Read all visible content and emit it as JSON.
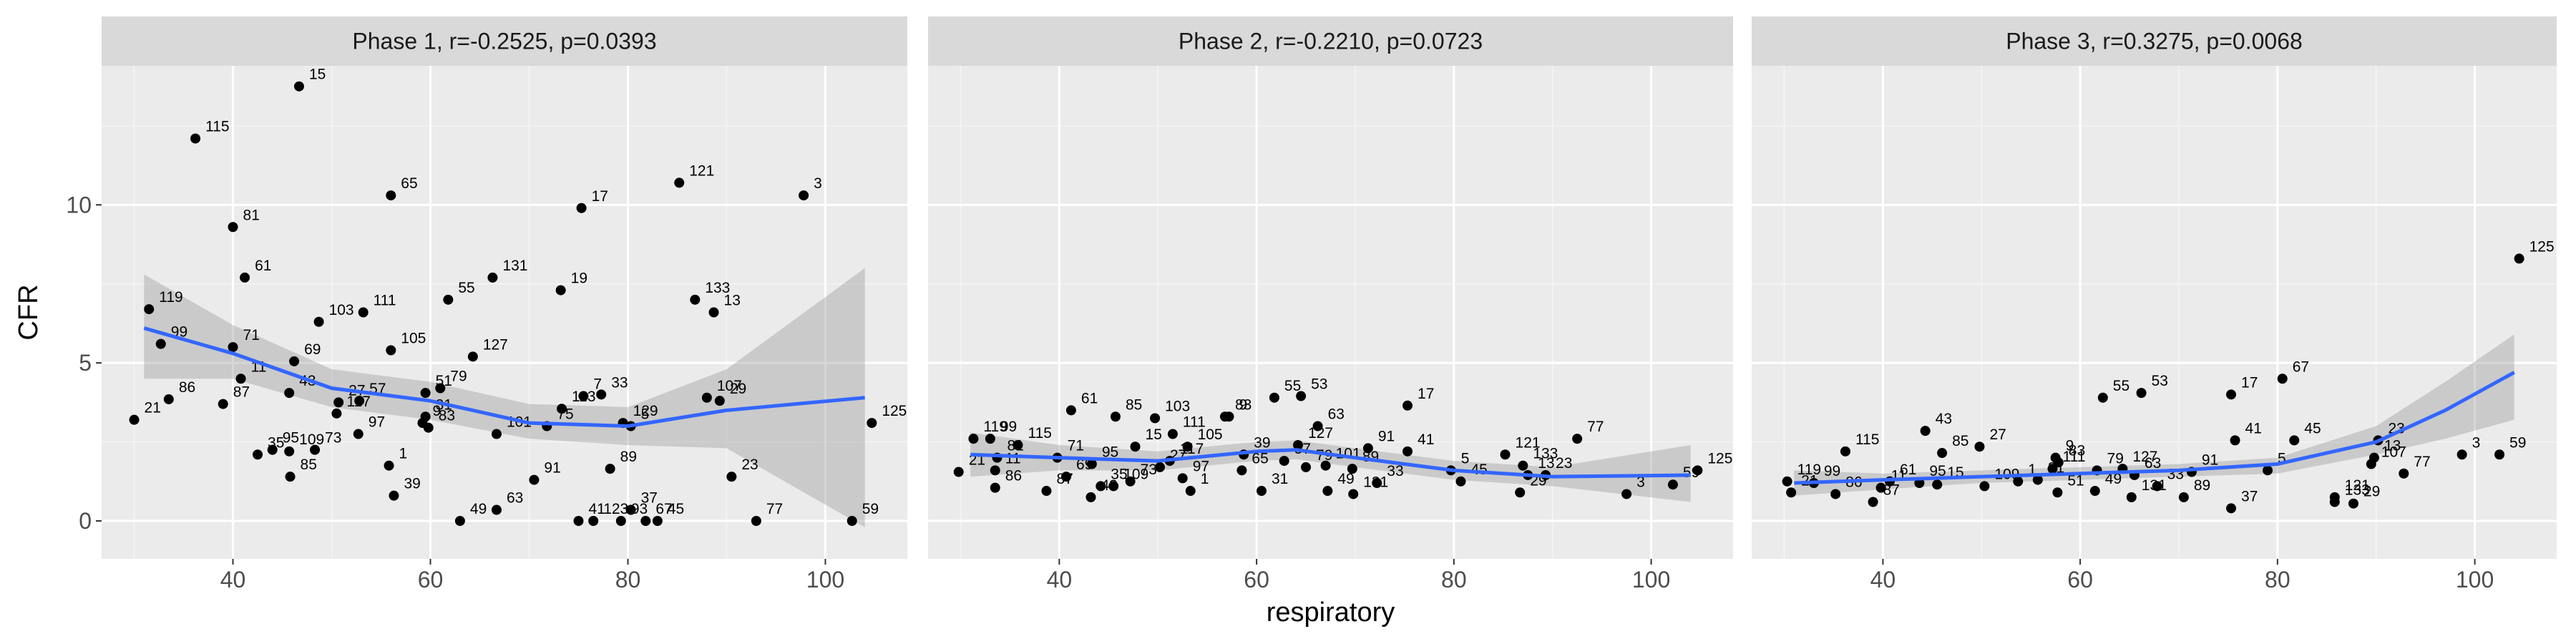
{
  "chart_data": [
    {
      "type": "scatter",
      "title": "Phase 1, r=-0.2525, p=0.0393",
      "ylabel": "CFR",
      "xlim": [
        26.7,
        108.3
      ],
      "ylim": [
        -1.2,
        14.4
      ],
      "xticks": [
        40,
        60,
        80,
        100
      ],
      "yticks": [
        0,
        5,
        10
      ],
      "grid": true,
      "color": "#000000",
      "point_labels": [
        "15",
        "115",
        "65",
        "81",
        "17",
        "121",
        "3",
        "131",
        "19",
        "133",
        "13",
        "61",
        "111",
        "55",
        "119",
        "71",
        "69",
        "103",
        "105",
        "127",
        "99",
        "11",
        "51",
        "79",
        "33",
        "7",
        "107",
        "86",
        "43",
        "27",
        "57",
        "117",
        "9",
        "31",
        "97",
        "113",
        "5",
        "21",
        "87",
        "95",
        "109",
        "83",
        "101",
        "75",
        "129",
        "29",
        "91",
        "89",
        "35",
        "85",
        "73",
        "1",
        "39",
        "23",
        "63",
        "49",
        "41",
        "123",
        "37",
        "45",
        "93",
        "67",
        "77",
        "59",
        "125"
      ],
      "x": [
        46.7,
        36.2,
        56,
        40,
        75.3,
        85.2,
        97.8,
        66.3,
        73.2,
        86.8,
        88.7,
        41.2,
        53.2,
        61.8,
        31.5,
        40,
        46.2,
        48.7,
        56,
        64.3,
        32.7,
        40.8,
        59.5,
        61,
        77.3,
        75.5,
        88,
        33.5,
        45.7,
        50.7,
        52.8,
        50.5,
        59.2,
        59.5,
        52.7,
        73.3,
        80.3,
        30,
        39,
        44,
        45.7,
        59.8,
        66.7,
        71.8,
        79.5,
        89.3,
        70.5,
        78.2,
        42.5,
        45.8,
        48.3,
        55.8,
        56.3,
        90.5,
        66.7,
        63,
        75,
        76.5,
        80.3,
        83,
        79.3,
        81.8,
        93,
        102.7,
        104.7
      ],
      "values": [
        13.75,
        12.1,
        10.3,
        9.3,
        9.9,
        10.7,
        10.3,
        7.7,
        7.3,
        7.0,
        6.6,
        7.7,
        6.6,
        7.0,
        6.7,
        5.5,
        5.05,
        6.3,
        5.4,
        5.2,
        5.6,
        4.5,
        4.05,
        4.2,
        4.0,
        3.95,
        3.9,
        3.85,
        4.05,
        3.75,
        3.8,
        3.4,
        3.1,
        3.3,
        2.75,
        3.55,
        3.0,
        3.2,
        3.7,
        2.25,
        2.2,
        2.95,
        2.75,
        3.0,
        3.1,
        3.8,
        1.3,
        1.65,
        2.1,
        1.4,
        2.25,
        1.75,
        0.8,
        1.4,
        0.35,
        0,
        0,
        0,
        0.35,
        0,
        0,
        0,
        0,
        0,
        3.1
      ],
      "smooth": {
        "color": "#3366ff",
        "band_color": "#999999",
        "x": [
          31,
          40,
          50,
          60,
          70,
          80,
          90,
          104
        ],
        "values": [
          6.1,
          5.3,
          4.2,
          3.8,
          3.1,
          3.0,
          3.5,
          3.9
        ],
        "lower": [
          4.5,
          4.5,
          3.6,
          3.2,
          2.6,
          2.4,
          2.3,
          -0.2
        ],
        "upper": [
          7.8,
          6.2,
          4.8,
          4.4,
          3.7,
          3.6,
          4.8,
          8.0
        ]
      }
    },
    {
      "type": "scatter",
      "title": "Phase 2, r=-0.2210, p=0.0723",
      "xlabel": "respiratory",
      "xlim": [
        26.7,
        108.3
      ],
      "ylim": [
        -1.2,
        14.4
      ],
      "xticks": [
        40,
        60,
        80,
        100
      ],
      "yticks": [
        0,
        5,
        10
      ],
      "grid": true,
      "color": "#000000",
      "point_labels": [
        "9",
        "55",
        "53",
        "103",
        "61",
        "85",
        "111",
        "83",
        "63",
        "17",
        "121",
        "133",
        "77",
        "125",
        "119",
        "115",
        "99",
        "71",
        "69",
        "15",
        "105",
        "127",
        "91",
        "41",
        "101",
        "5",
        "21",
        "81",
        "95",
        "117",
        "39",
        "57",
        "79",
        "23",
        "45",
        "11",
        "27",
        "86",
        "87",
        "35",
        "109",
        "73",
        "97",
        "1",
        "65",
        "31",
        "49",
        "131",
        "89",
        "33",
        "13",
        "29",
        "3",
        "59",
        "43"
      ],
      "x": [
        57.2,
        61.8,
        64.5,
        49.7,
        41.2,
        45.7,
        51.5,
        56.8,
        66.2,
        75.3,
        85.2,
        87,
        92.5,
        104.7,
        31.3,
        35.8,
        33,
        39.8,
        40.7,
        47.7,
        53,
        64.2,
        71.3,
        75.3,
        67,
        79.7,
        29.8,
        33.7,
        43.3,
        51.2,
        58.7,
        62.8,
        65,
        89.3,
        80.7,
        33.5,
        50.2,
        33.5,
        38.7,
        44.2,
        45.5,
        47.2,
        52.5,
        53.3,
        58.5,
        60.5,
        67.2,
        69.8,
        69.7,
        72.2,
        87.5,
        86.7,
        97.5,
        102.2,
        43.2
      ],
      "values": [
        3.3,
        3.9,
        3.95,
        3.25,
        3.5,
        3.3,
        2.75,
        3.3,
        3.0,
        3.65,
        2.1,
        1.75,
        2.6,
        1.6,
        2.6,
        2.4,
        2.6,
        2.0,
        1.4,
        2.35,
        2.35,
        2.4,
        2.3,
        2.2,
        1.75,
        1.6,
        1.55,
        2.0,
        1.8,
        1.9,
        2.1,
        1.9,
        1.7,
        1.45,
        1.25,
        1.6,
        1.7,
        1.05,
        0.95,
        1.1,
        1.1,
        1.25,
        1.35,
        0.95,
        1.6,
        0.95,
        0.95,
        0.85,
        1.65,
        1.2,
        1.45,
        0.9,
        0.85,
        1.15,
        0.75
      ],
      "smooth": {
        "color": "#3366ff",
        "band_color": "#999999",
        "x": [
          31,
          40,
          50,
          60,
          64,
          70,
          80,
          90,
          104
        ],
        "values": [
          2.1,
          2.0,
          1.9,
          2.2,
          2.25,
          2.0,
          1.6,
          1.4,
          1.45
        ],
        "lower": [
          1.4,
          1.6,
          1.6,
          1.9,
          1.95,
          1.7,
          1.3,
          1.1,
          0.6
        ],
        "upper": [
          2.8,
          2.4,
          2.2,
          2.5,
          2.55,
          2.3,
          1.9,
          1.7,
          2.4
        ]
      }
    },
    {
      "type": "scatter",
      "title": "Phase 3, r=0.3275, p=0.0068",
      "xlim": [
        26.7,
        108.3
      ],
      "ylim": [
        -1.2,
        14.4
      ],
      "xticks": [
        40,
        60,
        80,
        100
      ],
      "yticks": [
        0,
        5,
        10
      ],
      "grid": true,
      "color": "#000000",
      "point_labels": [
        "125",
        "67",
        "17",
        "53",
        "55",
        "43",
        "85",
        "27",
        "115",
        "9",
        "111",
        "83",
        "127",
        "79",
        "63",
        "41",
        "45",
        "13",
        "23",
        "107",
        "91",
        "5",
        "119",
        "99",
        "61",
        "15",
        "31",
        "21",
        "86",
        "87",
        "11",
        "95",
        "109",
        "1",
        "51",
        "49",
        "131",
        "33",
        "89",
        "37",
        "121",
        "133",
        "29",
        "77",
        "3",
        "59"
      ],
      "x": [
        104.5,
        80.5,
        75.3,
        66.2,
        62.3,
        44.3,
        46,
        49.8,
        36.2,
        57.5,
        57.2,
        57.8,
        64.3,
        61.7,
        65.5,
        75.7,
        81.7,
        89.8,
        90.2,
        89.5,
        71.3,
        79,
        30.3,
        33,
        40.7,
        45.5,
        55.7,
        30.7,
        35.2,
        39,
        39.8,
        43.7,
        50.3,
        53.7,
        57.7,
        61.5,
        65.2,
        67.8,
        70.5,
        75.3,
        85.8,
        85.8,
        87.7,
        92.8,
        98.7,
        102.5
      ],
      "values": [
        8.3,
        4.5,
        4.0,
        4.05,
        3.9,
        2.85,
        2.15,
        2.35,
        2.2,
        2.0,
        1.65,
        1.85,
        1.65,
        1.6,
        1.45,
        2.55,
        2.55,
        2.0,
        2.55,
        1.8,
        1.55,
        1.6,
        1.25,
        1.2,
        1.25,
        1.15,
        1.3,
        0.9,
        0.85,
        0.6,
        1.05,
        1.2,
        1.1,
        1.25,
        0.9,
        0.95,
        0.75,
        1.1,
        0.75,
        0.4,
        0.75,
        0.6,
        0.55,
        1.5,
        2.1,
        2.1
      ],
      "smooth": {
        "color": "#3366ff",
        "band_color": "#999999",
        "x": [
          31,
          40,
          50,
          60,
          70,
          80,
          90,
          97,
          104
        ],
        "values": [
          1.2,
          1.3,
          1.4,
          1.5,
          1.6,
          1.8,
          2.5,
          3.5,
          4.7
        ],
        "lower": [
          0.8,
          1.0,
          1.2,
          1.3,
          1.4,
          1.5,
          2.1,
          2.6,
          3.2
        ],
        "upper": [
          1.6,
          1.5,
          1.6,
          1.7,
          1.8,
          2.0,
          3.0,
          4.4,
          5.9
        ]
      }
    }
  ]
}
